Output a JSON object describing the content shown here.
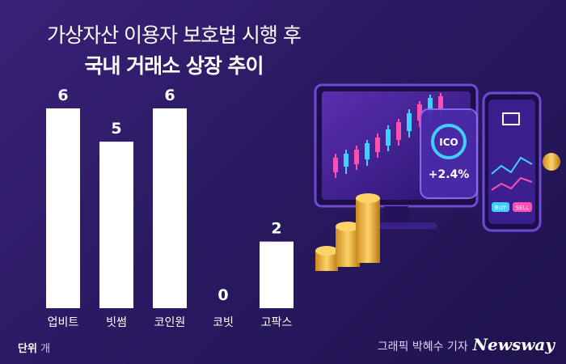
{
  "header": {
    "title_line1": "가상자산 이용자 보호법 시행 후",
    "title_line2": "국내 거래소 상장 추이"
  },
  "chart_data": {
    "type": "bar",
    "categories": [
      "업비트",
      "빗썸",
      "코인원",
      "코빗",
      "고팍스"
    ],
    "values": [
      6,
      5,
      6,
      0,
      2
    ],
    "title": "가상자산 이용자 보호법 시행 후 국내 거래소 상장 추이",
    "xlabel": "",
    "ylabel": "",
    "ylim": [
      0,
      6
    ],
    "grid": false,
    "bar_color": "#ffffff"
  },
  "footer": {
    "unit_label": "단위",
    "unit_value": "개",
    "credit_text": "그래픽 박혜수 기자",
    "brand": "Newsway"
  },
  "illustration": {
    "badge_text": "ICO",
    "badge_value": "+2.4%",
    "buy_label": "BUY",
    "sell_label": "SELL"
  },
  "colors": {
    "background": "#2a1a62",
    "accent_pink": "#ff4fb0",
    "accent_cyan": "#3fd0ff",
    "coin_gold": "#f0b83a"
  }
}
